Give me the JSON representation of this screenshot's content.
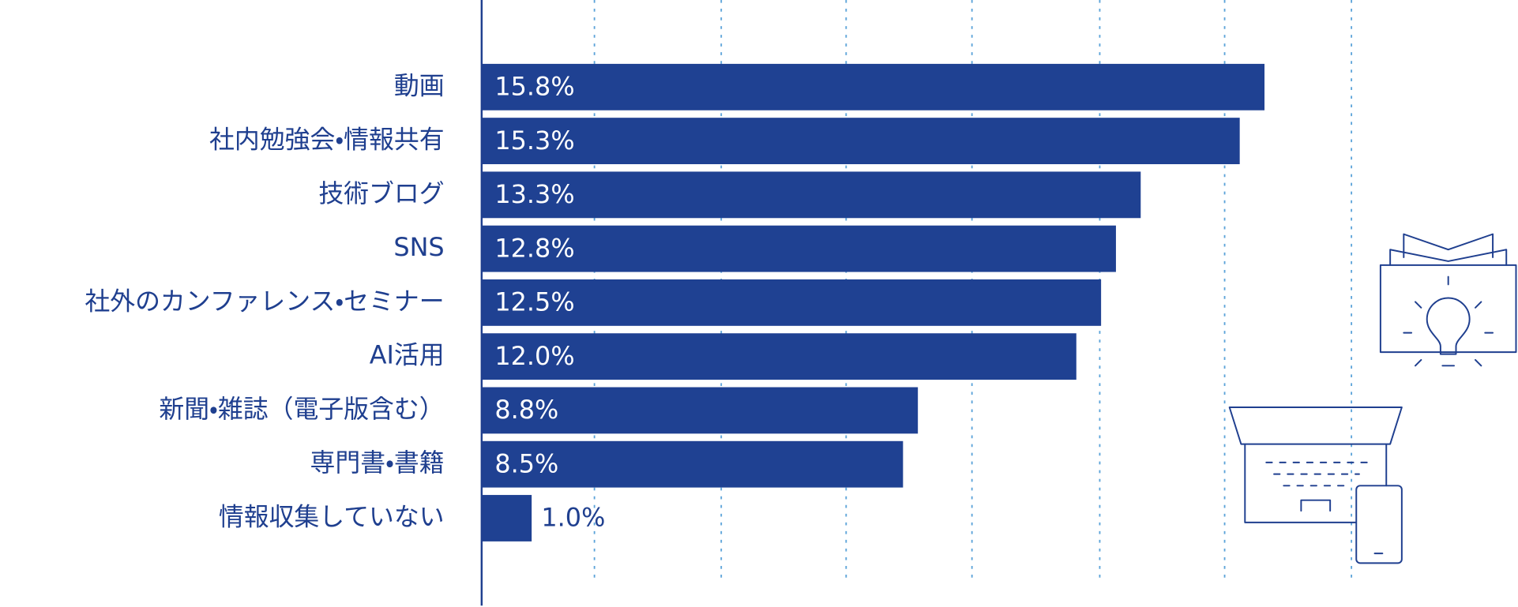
{
  "chart_data": {
    "type": "bar",
    "orientation": "horizontal",
    "categories": [
      "動画",
      "社内勉強会・情報共有",
      "技術ブログ",
      "SNS",
      "社外のカンファレンス・セミナー",
      "AI活用",
      "新聞・雑誌（電子版含む）",
      "専門書・書籍",
      "情報収集していない"
    ],
    "values": [
      15.8,
      15.3,
      13.3,
      12.8,
      12.5,
      12.0,
      8.8,
      8.5,
      1.0
    ],
    "value_labels": [
      "15.8%",
      "15.3%",
      "13.3%",
      "12.8%",
      "12.5%",
      "12.0%",
      "8.8%",
      "8.5%",
      "1.0%"
    ],
    "color": "#1f4192",
    "xlim": [
      0,
      17.5
    ]
  }
}
